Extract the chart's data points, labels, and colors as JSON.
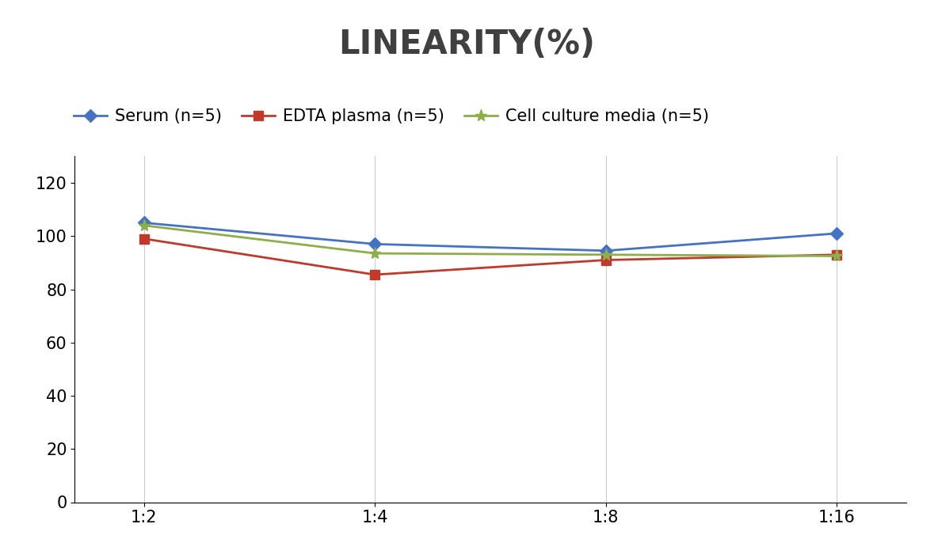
{
  "title": "LINEARITY(%)",
  "title_fontsize": 30,
  "title_fontweight": "bold",
  "title_color": "#404040",
  "x_labels": [
    "1:2",
    "1:4",
    "1:8",
    "1:16"
  ],
  "x_positions": [
    0,
    1,
    2,
    3
  ],
  "series": [
    {
      "label": "Serum (n=5)",
      "values": [
        105,
        97,
        94.5,
        101
      ],
      "color": "#4472C4",
      "marker": "D",
      "markersize": 8,
      "linewidth": 2
    },
    {
      "label": "EDTA plasma (n=5)",
      "values": [
        99,
        85.5,
        91,
        93
      ],
      "color": "#C0392B",
      "marker": "s",
      "markersize": 8,
      "linewidth": 2
    },
    {
      "label": "Cell culture media (n=5)",
      "values": [
        104,
        93.5,
        93,
        92.5
      ],
      "color": "#8DAE48",
      "marker": "*",
      "markersize": 11,
      "linewidth": 2
    }
  ],
  "ylim": [
    0,
    130
  ],
  "yticks": [
    0,
    20,
    40,
    60,
    80,
    100,
    120
  ],
  "grid_color": "#CCCCCC",
  "grid_linewidth": 0.8,
  "background_color": "#FFFFFF",
  "legend_fontsize": 15,
  "tick_fontsize": 15
}
